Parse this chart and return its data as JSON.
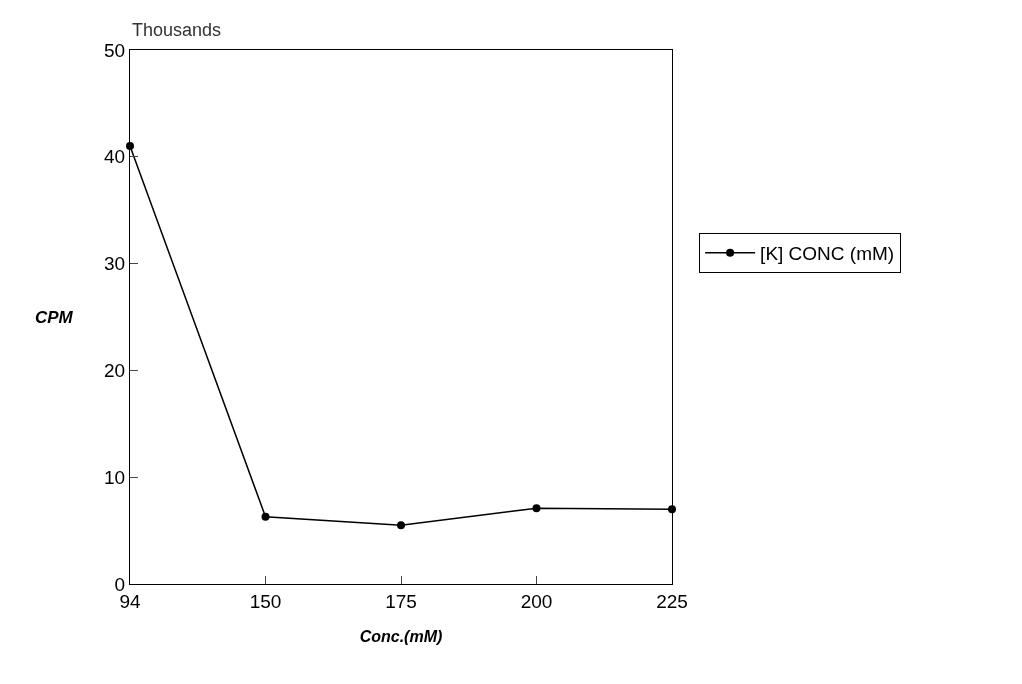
{
  "chart_data": {
    "type": "line",
    "xlabel": "Conc.(mM)",
    "ylabel": "CPM",
    "annotations": [
      "Thousands"
    ],
    "categories": [
      "94",
      "150",
      "175",
      "200",
      "225"
    ],
    "series": [
      {
        "name": "[K] CONC (mM)",
        "color": "#000000",
        "values": [
          41,
          6.3,
          5.5,
          7.1,
          7.0
        ]
      }
    ],
    "ylim": [
      0,
      50
    ],
    "yticks": [
      0,
      10,
      20,
      30,
      40,
      50
    ],
    "legend": "right",
    "marker": "circle",
    "line_style": "solid"
  }
}
